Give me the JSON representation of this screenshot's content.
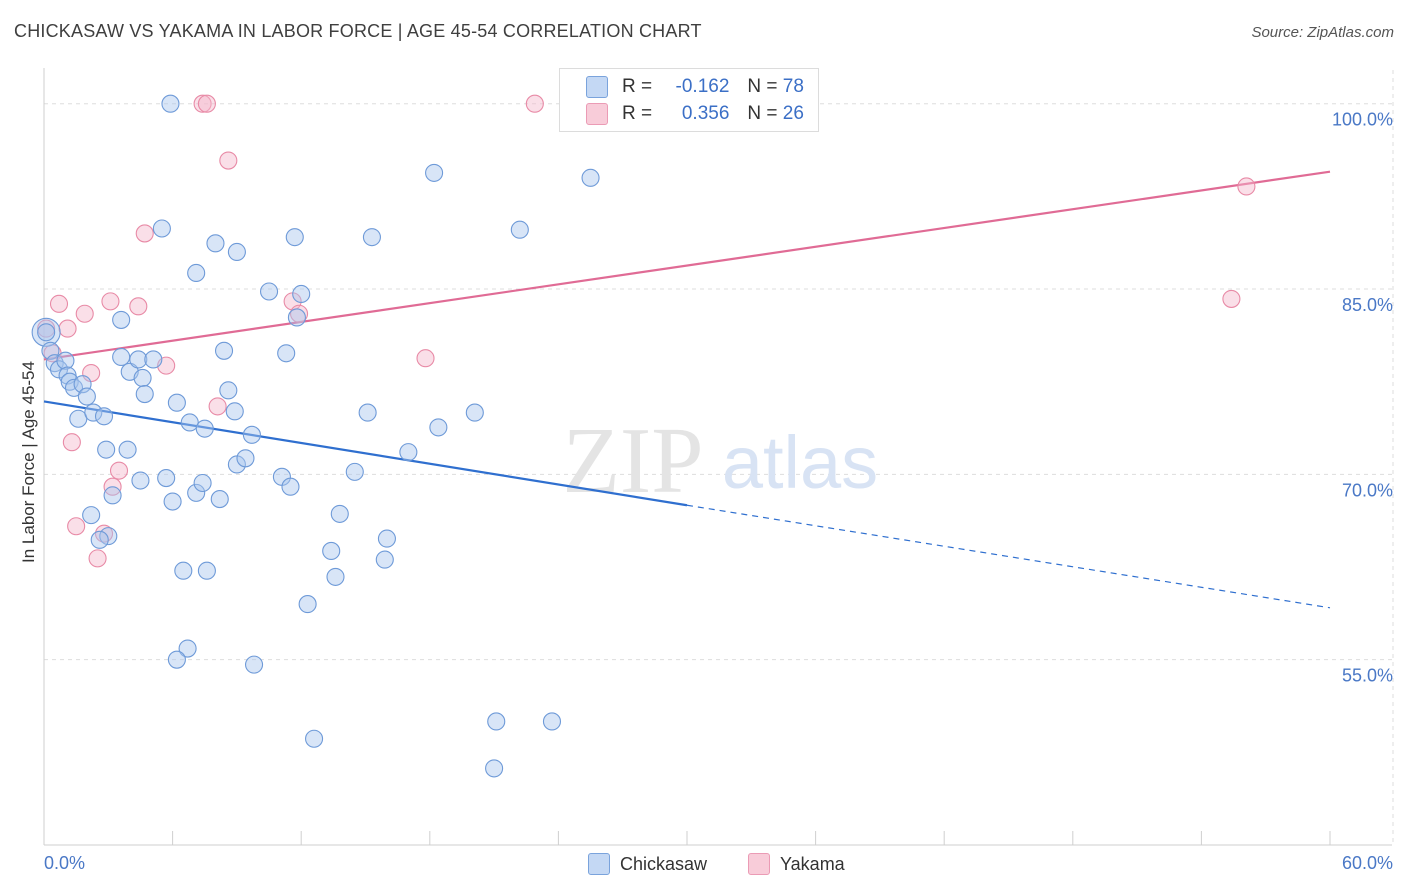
{
  "header": {
    "title": "CHICKASAW VS YAKAMA IN LABOR FORCE | AGE 45-54 CORRELATION CHART",
    "source": "Source: ZipAtlas.com"
  },
  "legend": {
    "r_label": "R =",
    "n_label": "N =",
    "rows": [
      {
        "r": "-0.162",
        "n": "78"
      },
      {
        "r": "0.356",
        "n": "26"
      }
    ]
  },
  "watermark": {
    "zip": "ZIP",
    "atlas": "atlas"
  },
  "colors": {
    "chickasaw_fill": "#a9c6ee",
    "chickasaw_stroke": "#6e9ad8",
    "chickasaw_line": "#2f6fcf",
    "yakama_fill": "#f5b8cb",
    "yakama_stroke": "#e88aa6",
    "yakama_line": "#e06b95",
    "axis_label": "#4a78c6",
    "grid": "#dddddd"
  },
  "chart_data": {
    "type": "scatter",
    "ylabel": "In Labor Force | Age 45-54",
    "xlim": [
      0,
      60
    ],
    "ylim": [
      40,
      102
    ],
    "x_tick_labels": [
      "0.0%",
      "60.0%"
    ],
    "y_ticks": [
      55,
      70,
      85,
      100
    ],
    "y_tick_labels": [
      "55.0%",
      "70.0%",
      "85.0%",
      "100.0%"
    ],
    "grid": true,
    "legend_position": "top-center",
    "series": [
      {
        "name": "Chickasaw",
        "points": [
          [
            0.1,
            81.5
          ],
          [
            0.3,
            80
          ],
          [
            0.5,
            79
          ],
          [
            0.7,
            78.5
          ],
          [
            1.0,
            79.2
          ],
          [
            1.1,
            78
          ],
          [
            1.2,
            77.5
          ],
          [
            1.4,
            77
          ],
          [
            1.8,
            77.3
          ],
          [
            2.0,
            76.3
          ],
          [
            1.6,
            74.5
          ],
          [
            2.3,
            75
          ],
          [
            2.8,
            74.7
          ],
          [
            2.9,
            72
          ],
          [
            2.2,
            66.7
          ],
          [
            3.0,
            65
          ],
          [
            3.2,
            68.3
          ],
          [
            2.6,
            64.7
          ],
          [
            3.6,
            82.5
          ],
          [
            3.6,
            79.5
          ],
          [
            4.0,
            78.3
          ],
          [
            4.4,
            79.3
          ],
          [
            4.6,
            77.8
          ],
          [
            4.7,
            76.5
          ],
          [
            5.1,
            79.3
          ],
          [
            3.9,
            72
          ],
          [
            4.5,
            69.5
          ],
          [
            5.7,
            69.7
          ],
          [
            6.0,
            67.8
          ],
          [
            6.2,
            75.8
          ],
          [
            6.5,
            62.2
          ],
          [
            6.8,
            74.2
          ],
          [
            7.1,
            68.5
          ],
          [
            7.4,
            69.3
          ],
          [
            7.5,
            73.7
          ],
          [
            8.2,
            68
          ],
          [
            8.4,
            80
          ],
          [
            8.6,
            76.8
          ],
          [
            8.9,
            75.1
          ],
          [
            9.0,
            70.8
          ],
          [
            9.4,
            71.3
          ],
          [
            9.7,
            73.2
          ],
          [
            7.6,
            62.2
          ],
          [
            6.7,
            55.9
          ],
          [
            6.2,
            55
          ],
          [
            9.8,
            54.6
          ],
          [
            10.5,
            84.8
          ],
          [
            11.3,
            79.8
          ],
          [
            11.1,
            69.8
          ],
          [
            11.5,
            69
          ],
          [
            11.7,
            89.2
          ],
          [
            12.0,
            84.6
          ],
          [
            11.8,
            82.7
          ],
          [
            12.3,
            59.5
          ],
          [
            12.6,
            48.6
          ],
          [
            13.4,
            63.8
          ],
          [
            13.6,
            61.7
          ],
          [
            13.8,
            66.8
          ],
          [
            14.5,
            70.2
          ],
          [
            15.1,
            75
          ],
          [
            15.3,
            89.2
          ],
          [
            15.9,
            63.1
          ],
          [
            16.0,
            64.8
          ],
          [
            17.0,
            71.8
          ],
          [
            18.2,
            94.4
          ],
          [
            18.4,
            73.8
          ],
          [
            20.1,
            75
          ],
          [
            21.1,
            50
          ],
          [
            21.0,
            46.2
          ],
          [
            22.2,
            89.8
          ],
          [
            23.7,
            50
          ],
          [
            25.5,
            94
          ],
          [
            5.5,
            89.9
          ],
          [
            7.1,
            86.3
          ],
          [
            8.0,
            88.7
          ],
          [
            9.0,
            88
          ],
          [
            5.9,
            100
          ],
          [
            0.1,
            81.5
          ]
        ]
      },
      {
        "name": "Yakama",
        "points": [
          [
            0.1,
            81.8
          ],
          [
            0.4,
            79.8
          ],
          [
            0.7,
            83.8
          ],
          [
            1.1,
            81.8
          ],
          [
            1.3,
            72.6
          ],
          [
            1.5,
            65.8
          ],
          [
            1.9,
            83
          ],
          [
            2.2,
            78.2
          ],
          [
            2.5,
            63.2
          ],
          [
            2.8,
            65.2
          ],
          [
            3.1,
            84
          ],
          [
            3.2,
            69
          ],
          [
            3.5,
            70.3
          ],
          [
            4.4,
            83.6
          ],
          [
            4.7,
            89.5
          ],
          [
            5.7,
            78.8
          ],
          [
            7.4,
            100
          ],
          [
            7.6,
            100
          ],
          [
            8.1,
            75.5
          ],
          [
            8.6,
            95.4
          ],
          [
            11.6,
            84
          ],
          [
            11.9,
            83
          ],
          [
            17.8,
            79.4
          ],
          [
            22.9,
            100
          ],
          [
            56.1,
            93.3
          ],
          [
            55.4,
            84.2
          ]
        ]
      }
    ],
    "trend_lines": [
      {
        "series": "Chickasaw",
        "from": [
          0,
          75.9
        ],
        "solid_to": [
          30,
          67.5
        ],
        "dashed_to": [
          60,
          59.2
        ]
      },
      {
        "series": "Yakama",
        "from": [
          0,
          79.3
        ],
        "to": [
          60,
          94.5
        ]
      }
    ]
  }
}
